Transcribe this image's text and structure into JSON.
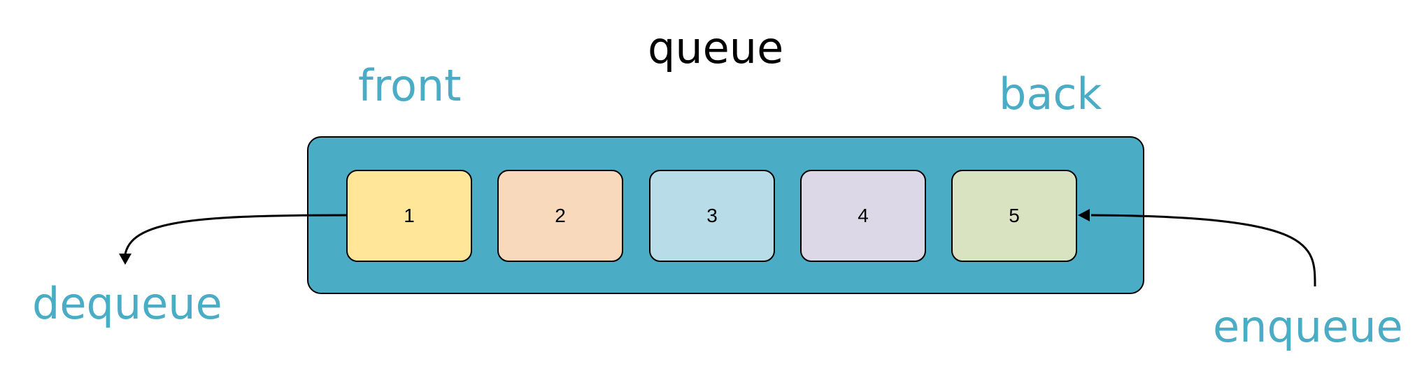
{
  "diagram": {
    "title": "queue",
    "front_label": "front",
    "back_label": "back",
    "dequeue_label": "dequeue",
    "enqueue_label": "enqueue",
    "items": [
      {
        "label": "1",
        "color": "#FFE699"
      },
      {
        "label": "2",
        "color": "#F8D9BC"
      },
      {
        "label": "3",
        "color": "#B8DDE8"
      },
      {
        "label": "4",
        "color": "#DDD8E8"
      },
      {
        "label": "5",
        "color": "#D9E3C1"
      }
    ]
  },
  "colors": {
    "container": "#4BACC6",
    "accent_text": "#4BACC6",
    "arrow": "#000000"
  }
}
